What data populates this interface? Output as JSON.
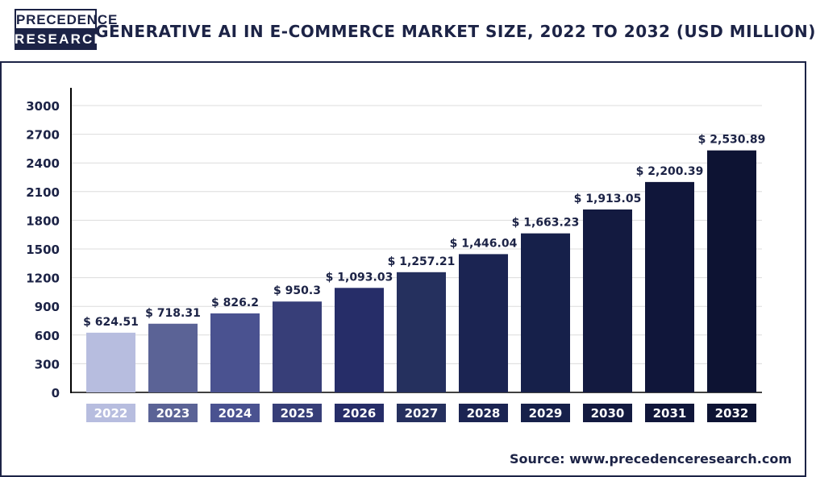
{
  "logo": {
    "line1": "PRECEDENCE",
    "line2": "RESEARCH"
  },
  "title": "GENERATIVE AI IN E-COMMERCE MARKET SIZE, 2022 TO 2032 (USD MILLION)",
  "source": "Source: www.precedenceresearch.com",
  "colors": {
    "navy": "#1c2346",
    "bars": [
      "#b7bddf",
      "#5b6396",
      "#4a5290",
      "#373e78",
      "#262d68",
      "#25305e",
      "#1b2452",
      "#16204a",
      "#131a40",
      "#10163a",
      "#0d1333"
    ],
    "grid": "#dcdcdc"
  },
  "chart_data": {
    "type": "bar",
    "title": "GENERATIVE AI IN E-COMMERCE MARKET SIZE, 2022 TO 2032 (USD MILLION)",
    "categories": [
      "2022",
      "2023",
      "2024",
      "2025",
      "2026",
      "2027",
      "2028",
      "2029",
      "2030",
      "2031",
      "2032"
    ],
    "values": [
      624.51,
      718.31,
      826.2,
      950.3,
      1093.03,
      1257.21,
      1446.04,
      1663.23,
      1913.05,
      2200.39,
      2530.89
    ],
    "data_labels": [
      "$ 624.51",
      "$ 718.31",
      "$ 826.2",
      "$ 950.3",
      "$ 1,093.03",
      "$ 1,257.21",
      "$ 1,446.04",
      "$ 1,663.23",
      "$ 1,913.05",
      "$ 2,200.39",
      "$ 2,530.89"
    ],
    "yticks": [
      0,
      300,
      600,
      900,
      1200,
      1500,
      1800,
      2100,
      2400,
      2700,
      3000
    ],
    "ylim": [
      0,
      3000
    ],
    "xlabel": "",
    "ylabel": "",
    "grid": true,
    "legend": "none"
  }
}
